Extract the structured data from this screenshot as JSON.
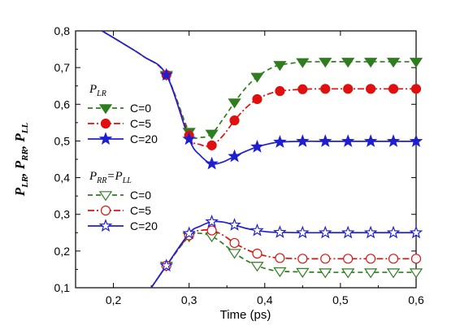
{
  "chart_data": {
    "type": "line",
    "xlabel": "Time  (ps)",
    "ylabel": "P_LR, P_RR, P_LL",
    "xlim": [
      0.15,
      0.6
    ],
    "ylim": [
      0.1,
      0.8
    ],
    "xticks": [
      0.2,
      0.3,
      0.4,
      0.5,
      0.6
    ],
    "yticks": [
      0.1,
      0.2,
      0.3,
      0.4,
      0.5,
      0.6,
      0.7,
      0.8
    ],
    "xtick_labels": [
      "0,2",
      "0,3",
      "0,4",
      "0,5",
      "0,6"
    ],
    "ytick_labels": [
      "0,1",
      "0,2",
      "0,3",
      "0,4",
      "0,5",
      "0,6",
      "0,7",
      "0,8"
    ],
    "legend": [
      {
        "group_title": "P_LR",
        "entries": [
          "C=0",
          "C=5",
          "C=20"
        ]
      },
      {
        "group_title": "P_RR=P_LL",
        "entries": [
          "C=0",
          "C=5",
          "C=20"
        ]
      }
    ],
    "series": [
      {
        "name": "C=0",
        "group": "P_LR",
        "color": "#2e7d1e",
        "dash": "6,4",
        "marker": "triangle-down",
        "filled": true,
        "x": [
          0.185,
          0.21,
          0.24,
          0.27,
          0.3,
          0.315,
          0.33,
          0.345,
          0.36,
          0.375,
          0.39,
          0.405,
          0.42,
          0.45,
          0.48,
          0.51,
          0.54,
          0.57,
          0.6
        ],
        "y": [
          0.8,
          0.769,
          0.73,
          0.68,
          0.525,
          0.51,
          0.52,
          0.56,
          0.605,
          0.645,
          0.675,
          0.695,
          0.707,
          0.715,
          0.716,
          0.716,
          0.716,
          0.716,
          0.716
        ],
        "markers_x": [
          0.27,
          0.3,
          0.33,
          0.36,
          0.39,
          0.42,
          0.45,
          0.48,
          0.51,
          0.54,
          0.57,
          0.6
        ],
        "markers_y": [
          0.68,
          0.525,
          0.52,
          0.605,
          0.675,
          0.707,
          0.715,
          0.716,
          0.716,
          0.716,
          0.716,
          0.716
        ]
      },
      {
        "name": "C=5",
        "group": "P_LR",
        "color": "#e01010",
        "dash": "8,3,2,3",
        "marker": "circle",
        "filled": true,
        "x": [
          0.185,
          0.21,
          0.24,
          0.27,
          0.3,
          0.315,
          0.33,
          0.345,
          0.36,
          0.375,
          0.39,
          0.405,
          0.42,
          0.45,
          0.48,
          0.51,
          0.54,
          0.57,
          0.6
        ],
        "y": [
          0.8,
          0.769,
          0.73,
          0.68,
          0.515,
          0.49,
          0.488,
          0.515,
          0.556,
          0.59,
          0.614,
          0.628,
          0.636,
          0.641,
          0.642,
          0.642,
          0.642,
          0.642,
          0.642
        ],
        "markers_x": [
          0.27,
          0.3,
          0.33,
          0.36,
          0.39,
          0.42,
          0.45,
          0.48,
          0.51,
          0.54,
          0.57,
          0.6
        ],
        "markers_y": [
          0.68,
          0.515,
          0.488,
          0.556,
          0.614,
          0.636,
          0.641,
          0.642,
          0.642,
          0.642,
          0.642,
          0.642
        ]
      },
      {
        "name": "C=20",
        "group": "P_LR",
        "color": "#1f1fd0",
        "dash": "",
        "marker": "star",
        "filled": true,
        "x": [
          0.185,
          0.21,
          0.24,
          0.27,
          0.3,
          0.315,
          0.33,
          0.345,
          0.36,
          0.375,
          0.39,
          0.405,
          0.42,
          0.45,
          0.48,
          0.51,
          0.54,
          0.57,
          0.6
        ],
        "y": [
          0.8,
          0.769,
          0.73,
          0.68,
          0.505,
          0.46,
          0.438,
          0.443,
          0.458,
          0.472,
          0.484,
          0.492,
          0.497,
          0.499,
          0.499,
          0.499,
          0.499,
          0.499,
          0.499
        ],
        "markers_x": [
          0.27,
          0.3,
          0.33,
          0.36,
          0.39,
          0.42,
          0.45,
          0.48,
          0.51,
          0.54,
          0.57,
          0.6
        ],
        "markers_y": [
          0.68,
          0.505,
          0.438,
          0.458,
          0.484,
          0.497,
          0.499,
          0.499,
          0.499,
          0.499,
          0.499,
          0.499
        ]
      },
      {
        "name": "C=0",
        "group": "P_RR=P_LL",
        "color": "#2e7d1e",
        "dash": "6,4",
        "marker": "triangle-down",
        "filled": false,
        "x": [
          0.25,
          0.27,
          0.3,
          0.315,
          0.33,
          0.345,
          0.36,
          0.375,
          0.39,
          0.405,
          0.42,
          0.45,
          0.48,
          0.51,
          0.54,
          0.57,
          0.6
        ],
        "y": [
          0.1,
          0.16,
          0.24,
          0.248,
          0.24,
          0.22,
          0.195,
          0.175,
          0.16,
          0.15,
          0.145,
          0.143,
          0.142,
          0.142,
          0.142,
          0.142,
          0.142
        ],
        "markers_x": [
          0.27,
          0.3,
          0.33,
          0.36,
          0.39,
          0.42,
          0.45,
          0.48,
          0.51,
          0.54,
          0.57,
          0.6
        ],
        "markers_y": [
          0.16,
          0.24,
          0.24,
          0.195,
          0.16,
          0.145,
          0.143,
          0.142,
          0.142,
          0.142,
          0.142,
          0.142
        ]
      },
      {
        "name": "C=5",
        "group": "P_RR=P_LL",
        "color": "#e01010",
        "dash": "8,3,2,3",
        "marker": "circle",
        "filled": false,
        "x": [
          0.25,
          0.27,
          0.3,
          0.315,
          0.33,
          0.345,
          0.36,
          0.375,
          0.39,
          0.405,
          0.42,
          0.45,
          0.48,
          0.51,
          0.54,
          0.57,
          0.6
        ],
        "y": [
          0.1,
          0.16,
          0.243,
          0.256,
          0.256,
          0.243,
          0.222,
          0.205,
          0.193,
          0.185,
          0.181,
          0.179,
          0.179,
          0.179,
          0.179,
          0.179,
          0.179
        ],
        "markers_x": [
          0.27,
          0.3,
          0.33,
          0.36,
          0.39,
          0.42,
          0.45,
          0.48,
          0.51,
          0.54,
          0.57,
          0.6
        ],
        "markers_y": [
          0.16,
          0.243,
          0.256,
          0.222,
          0.193,
          0.181,
          0.179,
          0.179,
          0.179,
          0.179,
          0.179,
          0.179
        ]
      },
      {
        "name": "C=20",
        "group": "P_RR=P_LL",
        "color": "#1f1fd0",
        "dash": "",
        "marker": "star",
        "filled": false,
        "x": [
          0.25,
          0.27,
          0.3,
          0.315,
          0.33,
          0.345,
          0.36,
          0.375,
          0.39,
          0.405,
          0.42,
          0.45,
          0.48,
          0.51,
          0.54,
          0.57,
          0.6
        ],
        "y": [
          0.1,
          0.16,
          0.248,
          0.268,
          0.28,
          0.279,
          0.271,
          0.262,
          0.256,
          0.252,
          0.251,
          0.25,
          0.25,
          0.25,
          0.25,
          0.25,
          0.25
        ],
        "markers_x": [
          0.27,
          0.3,
          0.33,
          0.36,
          0.39,
          0.42,
          0.45,
          0.48,
          0.51,
          0.54,
          0.57,
          0.6
        ],
        "markers_y": [
          0.16,
          0.248,
          0.28,
          0.271,
          0.256,
          0.251,
          0.25,
          0.25,
          0.25,
          0.25,
          0.25,
          0.25
        ]
      }
    ]
  }
}
